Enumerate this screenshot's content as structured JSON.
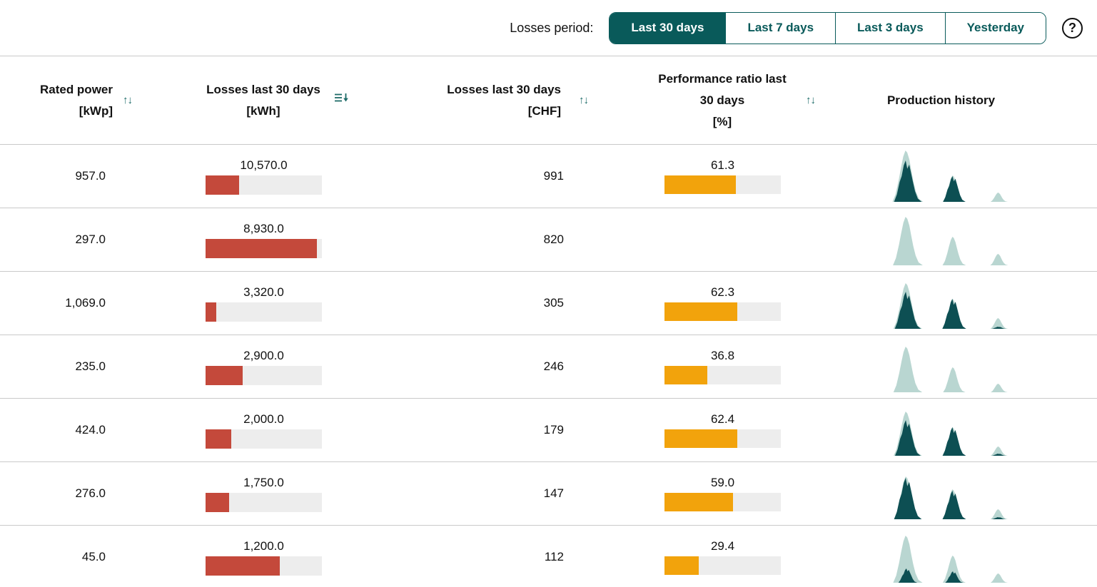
{
  "toolbar": {
    "label": "Losses period:",
    "buttons": [
      {
        "label": "Last 30 days",
        "active": true
      },
      {
        "label": "Last 7 days",
        "active": false
      },
      {
        "label": "Last 3 days",
        "active": false
      },
      {
        "label": "Yesterday",
        "active": false
      }
    ],
    "help_icon": "?"
  },
  "colors": {
    "accent_teal": "#095a5a",
    "losses_bar_red": "#c4493b",
    "performance_bar_orange": "#f2a30c",
    "bar_track_gray": "#ededed",
    "sparkline_dark_teal": "#0d4f53",
    "sparkline_light_teal": "#b9d6d1",
    "row_border_gray": "#c9c9c9"
  },
  "table": {
    "columns": [
      {
        "title_lines": [
          "Rated power",
          "[kWp]"
        ],
        "sort_icon": "sort-updown"
      },
      {
        "title_lines": [
          "Losses last 30 days",
          "[kWh]"
        ],
        "sort_icon": "sort-descending-active"
      },
      {
        "title_lines": [
          "Losses last 30 days",
          "[CHF]"
        ],
        "sort_icon": "sort-updown"
      },
      {
        "title_lines": [
          "Performance ratio last",
          "30 days",
          "[%]"
        ],
        "sort_icon": "sort-updown"
      },
      {
        "title_lines": [
          "Production history"
        ],
        "sort_icon": "none"
      }
    ],
    "rows": [
      {
        "rated_power": "957.0",
        "losses_kwh": "10,570.0",
        "losses_kwh_bar_pct": 29,
        "losses_chf": "991",
        "pr": "61.3",
        "pr_bar_pct": 61.3,
        "production": [
          {
            "expected": 72,
            "actual": 58
          },
          {
            "expected": 37,
            "actual": 36
          },
          {
            "expected": 13,
            "actual": 0
          }
        ]
      },
      {
        "rated_power": "297.0",
        "losses_kwh": "8,930.0",
        "losses_kwh_bar_pct": 96,
        "losses_chf": "820",
        "pr": null,
        "pr_bar_pct": null,
        "production": [
          {
            "expected": 68,
            "actual": 0
          },
          {
            "expected": 40,
            "actual": 0
          },
          {
            "expected": 16,
            "actual": 0
          }
        ]
      },
      {
        "rated_power": "1,069.0",
        "losses_kwh": "3,320.0",
        "losses_kwh_bar_pct": 9,
        "losses_chf": "305",
        "pr": "62.3",
        "pr_bar_pct": 62.3,
        "production": [
          {
            "expected": 64,
            "actual": 52
          },
          {
            "expected": 42,
            "actual": 42
          },
          {
            "expected": 15,
            "actual": 3
          }
        ]
      },
      {
        "rated_power": "235.0",
        "losses_kwh": "2,900.0",
        "losses_kwh_bar_pct": 32,
        "losses_chf": "246",
        "pr": "36.8",
        "pr_bar_pct": 36.8,
        "production": [
          {
            "expected": 64,
            "actual": 0
          },
          {
            "expected": 35,
            "actual": 0
          },
          {
            "expected": 12,
            "actual": 0
          }
        ]
      },
      {
        "rated_power": "424.0",
        "losses_kwh": "2,000.0",
        "losses_kwh_bar_pct": 22,
        "losses_chf": "179",
        "pr": "62.4",
        "pr_bar_pct": 62.4,
        "production": [
          {
            "expected": 62,
            "actual": 50
          },
          {
            "expected": 40,
            "actual": 40
          },
          {
            "expected": 13,
            "actual": 3
          }
        ]
      },
      {
        "rated_power": "276.0",
        "losses_kwh": "1,750.0",
        "losses_kwh_bar_pct": 20,
        "losses_chf": "147",
        "pr": "59.0",
        "pr_bar_pct": 59.0,
        "production": [
          {
            "expected": 60,
            "actual": 58
          },
          {
            "expected": 42,
            "actual": 40
          },
          {
            "expected": 14,
            "actual": 3
          }
        ]
      },
      {
        "rated_power": "45.0",
        "losses_kwh": "1,200.0",
        "losses_kwh_bar_pct": 64,
        "losses_chf": "112",
        "pr": "29.4",
        "pr_bar_pct": 29.4,
        "production": [
          {
            "expected": 66,
            "actual": 20
          },
          {
            "expected": 38,
            "actual": 16
          },
          {
            "expected": 13,
            "actual": 0
          }
        ]
      }
    ]
  }
}
